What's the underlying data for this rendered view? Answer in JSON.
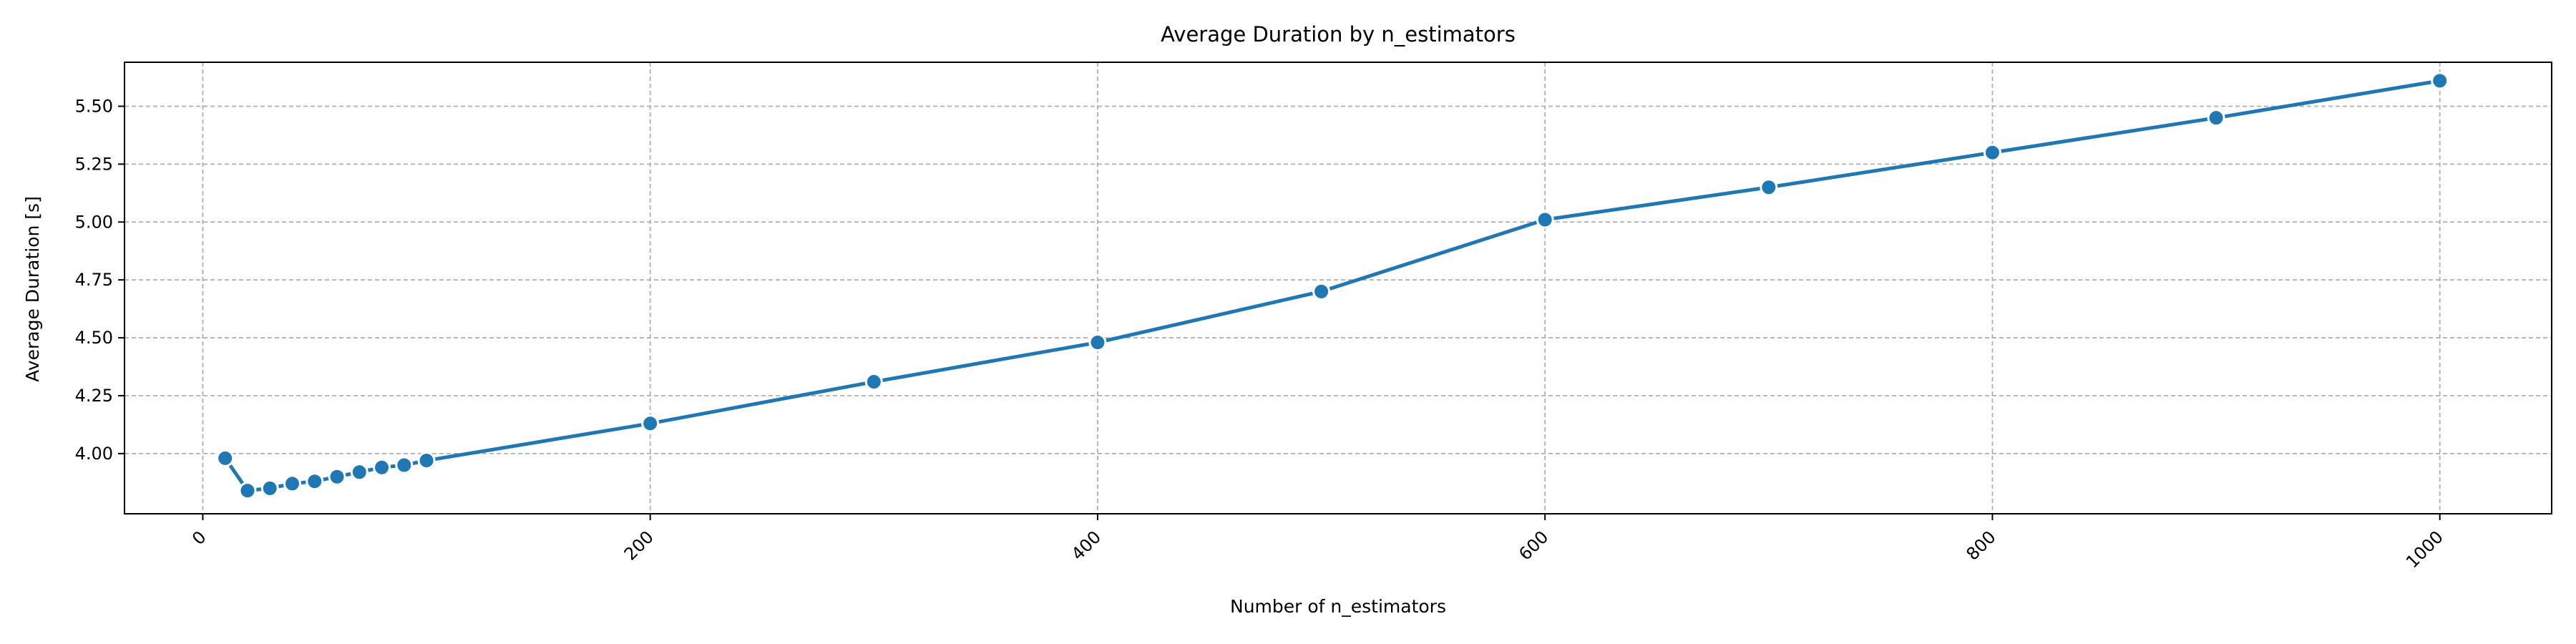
{
  "chart_data": {
    "type": "line",
    "title": "Average Duration by n_estimators",
    "xlabel": "Number of n_estimators",
    "ylabel": "Average Duration [s]",
    "xlim": [
      -35,
      1050
    ],
    "ylim": [
      3.74,
      5.69
    ],
    "x_ticks": [
      0,
      200,
      400,
      600,
      800,
      1000
    ],
    "x_tick_labels": [
      "0",
      "200",
      "400",
      "600",
      "800",
      "1000"
    ],
    "y_ticks": [
      4.0,
      4.25,
      4.5,
      4.75,
      5.0,
      5.25,
      5.5
    ],
    "y_tick_labels": [
      "4.00",
      "4.25",
      "4.50",
      "4.75",
      "5.00",
      "5.25",
      "5.50"
    ],
    "x_tick_rotation": 45,
    "grid": true,
    "grid_style": "dashed",
    "legend": "none",
    "marker": "circle",
    "series": [
      {
        "color": "#1f77b4",
        "x": [
          10,
          20,
          30,
          40,
          50,
          60,
          70,
          80,
          90,
          100,
          200,
          300,
          400,
          500,
          600,
          700,
          800,
          900,
          1000
        ],
        "y": [
          3.98,
          3.84,
          3.85,
          3.87,
          3.88,
          3.9,
          3.92,
          3.94,
          3.95,
          3.97,
          4.13,
          4.31,
          4.48,
          4.7,
          5.01,
          5.15,
          5.3,
          5.45,
          5.61
        ]
      }
    ]
  }
}
